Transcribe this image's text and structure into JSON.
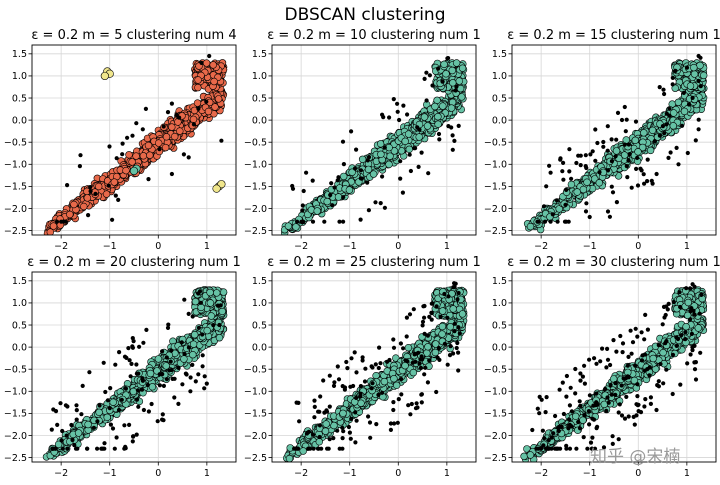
{
  "figure": {
    "suptitle": "DBSCAN clustering",
    "watermark": "知乎 @宋楠"
  },
  "chart_data": [
    {
      "type": "scatter",
      "title": "ε = 0.2 m = 5 clustering num 4",
      "xlim": [
        -2.6,
        1.6
      ],
      "ylim": [
        -2.6,
        1.7
      ],
      "xticks": [
        -2,
        -1,
        0,
        1
      ],
      "yticks": [
        -2.5,
        -2.0,
        -1.5,
        -1.0,
        -0.5,
        0.0,
        0.5,
        1.0,
        1.5
      ],
      "grid": true,
      "clusters": 4,
      "noise_points": 40,
      "colors": {
        "main": "#e8694a",
        "secondary": "#f0e68c",
        "tertiary": "#66c2a5",
        "noise": "#000000"
      }
    },
    {
      "type": "scatter",
      "title": "ε = 0.2 m = 10 clustering num 1",
      "xlim": [
        -2.6,
        1.6
      ],
      "ylim": [
        -2.6,
        1.7
      ],
      "xticks": [
        -2,
        -1,
        0,
        1
      ],
      "yticks": [
        -2.5,
        -2.0,
        -1.5,
        -1.0,
        -0.5,
        0.0,
        0.5,
        1.0,
        1.5
      ],
      "grid": true,
      "clusters": 1,
      "noise_points": 80,
      "colors": {
        "main": "#66c2a5",
        "noise": "#000000"
      }
    },
    {
      "type": "scatter",
      "title": "ε = 0.2 m = 15 clustering num 1",
      "xlim": [
        -2.6,
        1.6
      ],
      "ylim": [
        -2.6,
        1.7
      ],
      "xticks": [
        -2,
        -1,
        0,
        1
      ],
      "yticks": [
        -2.5,
        -2.0,
        -1.5,
        -1.0,
        -0.5,
        0.0,
        0.5,
        1.0,
        1.5
      ],
      "grid": true,
      "clusters": 1,
      "noise_points": 110,
      "colors": {
        "main": "#66c2a5",
        "noise": "#000000"
      }
    },
    {
      "type": "scatter",
      "title": "ε = 0.2 m = 20 clustering num 1",
      "xlim": [
        -2.6,
        1.6
      ],
      "ylim": [
        -2.6,
        1.7
      ],
      "xticks": [
        -2,
        -1,
        0,
        1
      ],
      "yticks": [
        -2.5,
        -2.0,
        -1.5,
        -1.0,
        -0.5,
        0.0,
        0.5,
        1.0,
        1.5
      ],
      "grid": true,
      "clusters": 1,
      "noise_points": 140,
      "colors": {
        "main": "#66c2a5",
        "noise": "#000000"
      }
    },
    {
      "type": "scatter",
      "title": "ε = 0.2 m = 25 clustering num 1",
      "xlim": [
        -2.6,
        1.6
      ],
      "ylim": [
        -2.6,
        1.7
      ],
      "xticks": [
        -2,
        -1,
        0,
        1
      ],
      "yticks": [
        -2.5,
        -2.0,
        -1.5,
        -1.0,
        -0.5,
        0.0,
        0.5,
        1.0,
        1.5
      ],
      "grid": true,
      "clusters": 1,
      "noise_points": 170,
      "colors": {
        "main": "#66c2a5",
        "noise": "#000000"
      }
    },
    {
      "type": "scatter",
      "title": "ε = 0.2 m = 30 clustering num 1",
      "xlim": [
        -2.6,
        1.6
      ],
      "ylim": [
        -2.6,
        1.7
      ],
      "xticks": [
        -2,
        -1,
        0,
        1
      ],
      "yticks": [
        -2.5,
        -2.0,
        -1.5,
        -1.0,
        -0.5,
        0.0,
        0.5,
        1.0,
        1.5
      ],
      "grid": true,
      "clusters": 1,
      "noise_points": 200,
      "colors": {
        "main": "#66c2a5",
        "noise": "#000000"
      }
    }
  ]
}
